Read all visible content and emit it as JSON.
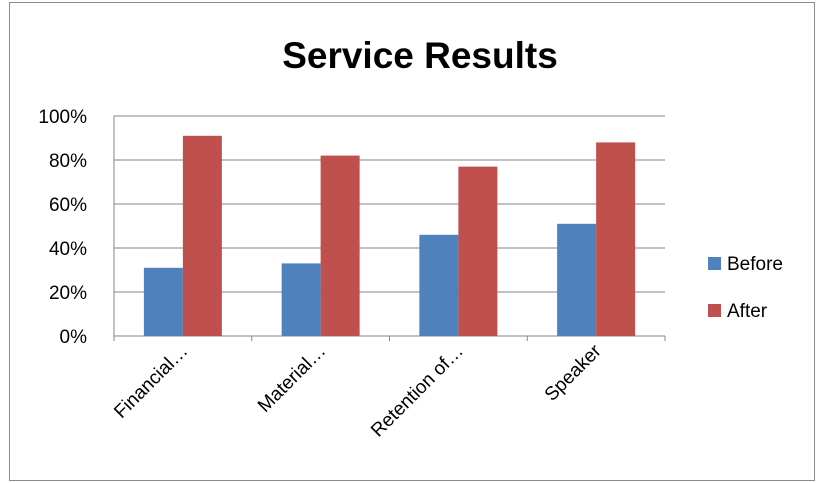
{
  "chart_data": {
    "type": "bar",
    "title": "Service Results",
    "categories": [
      "Financial…",
      "Material…",
      "Retention of…",
      "Speaker"
    ],
    "series": [
      {
        "name": "Before",
        "values": [
          31,
          33,
          46,
          51
        ],
        "color": "#4f81bd"
      },
      {
        "name": "After",
        "values": [
          91,
          82,
          77,
          88
        ],
        "color": "#c0504d"
      }
    ],
    "y_ticks": [
      "0%",
      "20%",
      "40%",
      "60%",
      "80%",
      "100%"
    ],
    "ylim": [
      0,
      100
    ],
    "y_unit": "%",
    "grid": true,
    "legend_position": "right",
    "xlabel": "",
    "ylabel": ""
  }
}
